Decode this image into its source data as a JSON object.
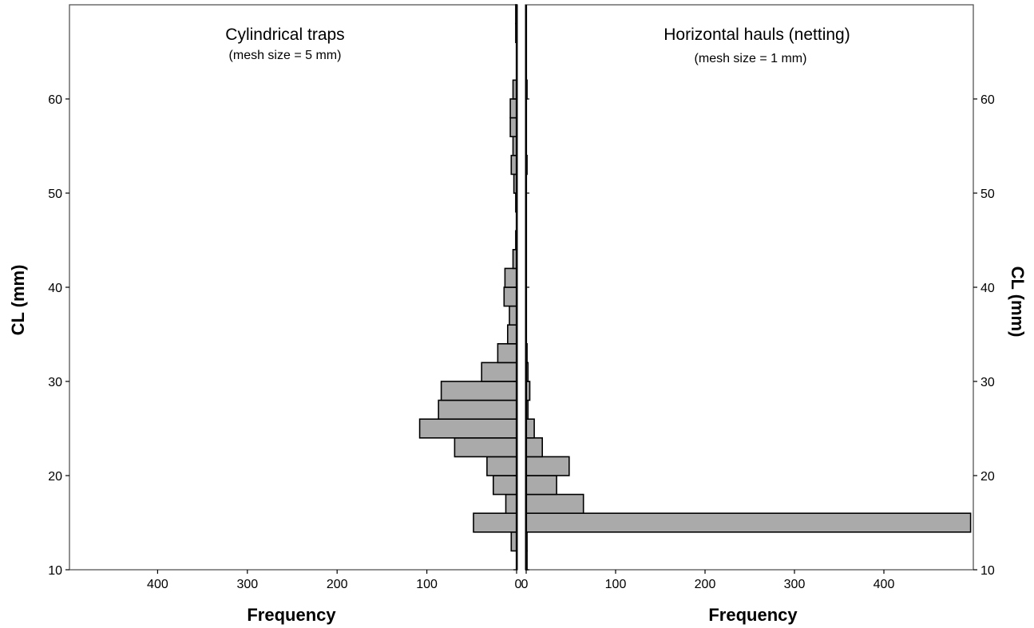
{
  "chart_data": [
    {
      "type": "bar",
      "orientation": "horizontal",
      "direction": "leftward",
      "panel": "left",
      "title": "Cylindrical traps",
      "subtitle": "(mesh size = 5 mm)",
      "xlabel": "Frequency",
      "ylabel": "CL (mm)",
      "xlim": [
        500,
        0
      ],
      "ylim": [
        10,
        70
      ],
      "xticks": [
        400,
        300,
        200,
        100,
        0
      ],
      "yticks": [
        10,
        20,
        30,
        40,
        50,
        60
      ],
      "bin_width": 2,
      "bins": [
        {
          "y0": 12,
          "y1": 14,
          "value": 6
        },
        {
          "y0": 14,
          "y1": 16,
          "value": 48
        },
        {
          "y0": 16,
          "y1": 18,
          "value": 12
        },
        {
          "y0": 18,
          "y1": 20,
          "value": 26
        },
        {
          "y0": 20,
          "y1": 22,
          "value": 33
        },
        {
          "y0": 22,
          "y1": 24,
          "value": 69
        },
        {
          "y0": 24,
          "y1": 26,
          "value": 108
        },
        {
          "y0": 26,
          "y1": 28,
          "value": 87
        },
        {
          "y0": 28,
          "y1": 30,
          "value": 84
        },
        {
          "y0": 30,
          "y1": 32,
          "value": 39
        },
        {
          "y0": 32,
          "y1": 34,
          "value": 21
        },
        {
          "y0": 34,
          "y1": 36,
          "value": 10
        },
        {
          "y0": 36,
          "y1": 38,
          "value": 8
        },
        {
          "y0": 38,
          "y1": 40,
          "value": 14
        },
        {
          "y0": 40,
          "y1": 42,
          "value": 13
        },
        {
          "y0": 42,
          "y1": 44,
          "value": 4
        },
        {
          "y0": 44,
          "y1": 46,
          "value": 1
        },
        {
          "y0": 46,
          "y1": 48,
          "value": 0
        },
        {
          "y0": 48,
          "y1": 50,
          "value": 1
        },
        {
          "y0": 50,
          "y1": 52,
          "value": 3
        },
        {
          "y0": 52,
          "y1": 54,
          "value": 6
        },
        {
          "y0": 54,
          "y1": 56,
          "value": 4
        },
        {
          "y0": 56,
          "y1": 58,
          "value": 7
        },
        {
          "y0": 58,
          "y1": 60,
          "value": 7
        },
        {
          "y0": 60,
          "y1": 62,
          "value": 4
        },
        {
          "y0": 66,
          "y1": 68,
          "value": 1
        },
        {
          "y0": 68,
          "y1": 70,
          "value": 1
        }
      ]
    },
    {
      "type": "bar",
      "orientation": "horizontal",
      "direction": "rightward",
      "panel": "right",
      "title": "Horizontal hauls (netting)",
      "subtitle": "(mesh size = 1 mm)",
      "xlabel": "Frequency",
      "ylabel": "CL (mm)",
      "xlim": [
        0,
        500
      ],
      "ylim": [
        10,
        70
      ],
      "xticks": [
        0,
        100,
        200,
        300,
        400
      ],
      "yticks": [
        10,
        20,
        30,
        40,
        50,
        60
      ],
      "bin_width": 2,
      "bins": [
        {
          "y0": 10,
          "y1": 12,
          "value": 1
        },
        {
          "y0": 12,
          "y1": 14,
          "value": 1
        },
        {
          "y0": 14,
          "y1": 16,
          "value": 497
        },
        {
          "y0": 16,
          "y1": 18,
          "value": 64
        },
        {
          "y0": 18,
          "y1": 20,
          "value": 34
        },
        {
          "y0": 20,
          "y1": 22,
          "value": 48
        },
        {
          "y0": 22,
          "y1": 24,
          "value": 18
        },
        {
          "y0": 24,
          "y1": 26,
          "value": 9
        },
        {
          "y0": 26,
          "y1": 28,
          "value": 2
        },
        {
          "y0": 28,
          "y1": 30,
          "value": 4
        },
        {
          "y0": 30,
          "y1": 32,
          "value": 2
        },
        {
          "y0": 32,
          "y1": 34,
          "value": 1
        },
        {
          "y0": 52,
          "y1": 54,
          "value": 1
        },
        {
          "y0": 60,
          "y1": 62,
          "value": 1
        }
      ]
    }
  ]
}
